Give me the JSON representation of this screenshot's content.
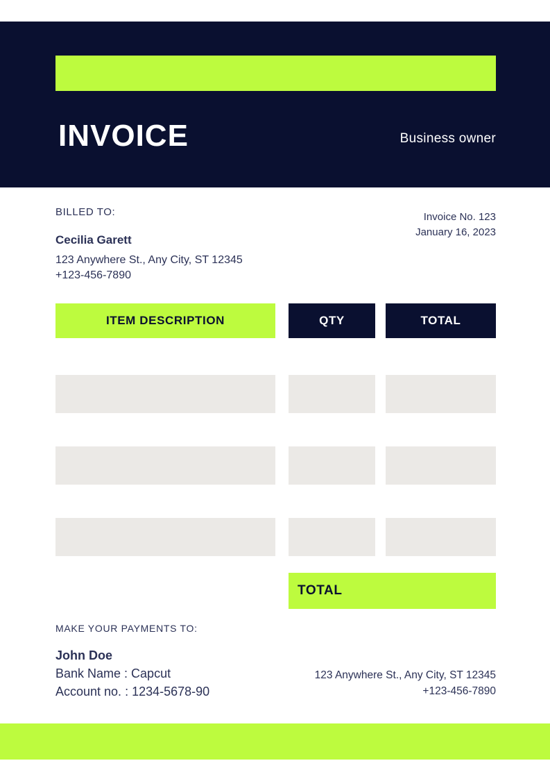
{
  "colors": {
    "navy": "#0a1030",
    "lime": "#bdfb3e",
    "row_gray": "#ebe9e6",
    "body_text": "#2b3156"
  },
  "header": {
    "title": "INVOICE",
    "subtitle": "Business owner"
  },
  "billed_to": {
    "label": "BILLED TO:",
    "name": "Cecilia Garett",
    "address": "123 Anywhere St., Any City, ST 12345",
    "phone": "+123-456-7890"
  },
  "invoice_meta": {
    "number": "Invoice No. 123",
    "date": "January 16, 2023"
  },
  "table": {
    "columns": [
      "ITEM DESCRIPTION",
      "QTY",
      "TOTAL"
    ],
    "rows": [
      {
        "description": "",
        "qty": "",
        "total": ""
      },
      {
        "description": "",
        "qty": "",
        "total": ""
      },
      {
        "description": "",
        "qty": "",
        "total": ""
      }
    ],
    "total_label": "TOTAL"
  },
  "payment": {
    "label": "MAKE YOUR PAYMENTS TO:",
    "name": "John Doe",
    "bank": "Bank Name : Capcut",
    "account": "Account no. : 1234-5678-90"
  },
  "footer_contact": {
    "address": "123 Anywhere St., Any City, ST 12345",
    "phone": "+123-456-7890"
  }
}
